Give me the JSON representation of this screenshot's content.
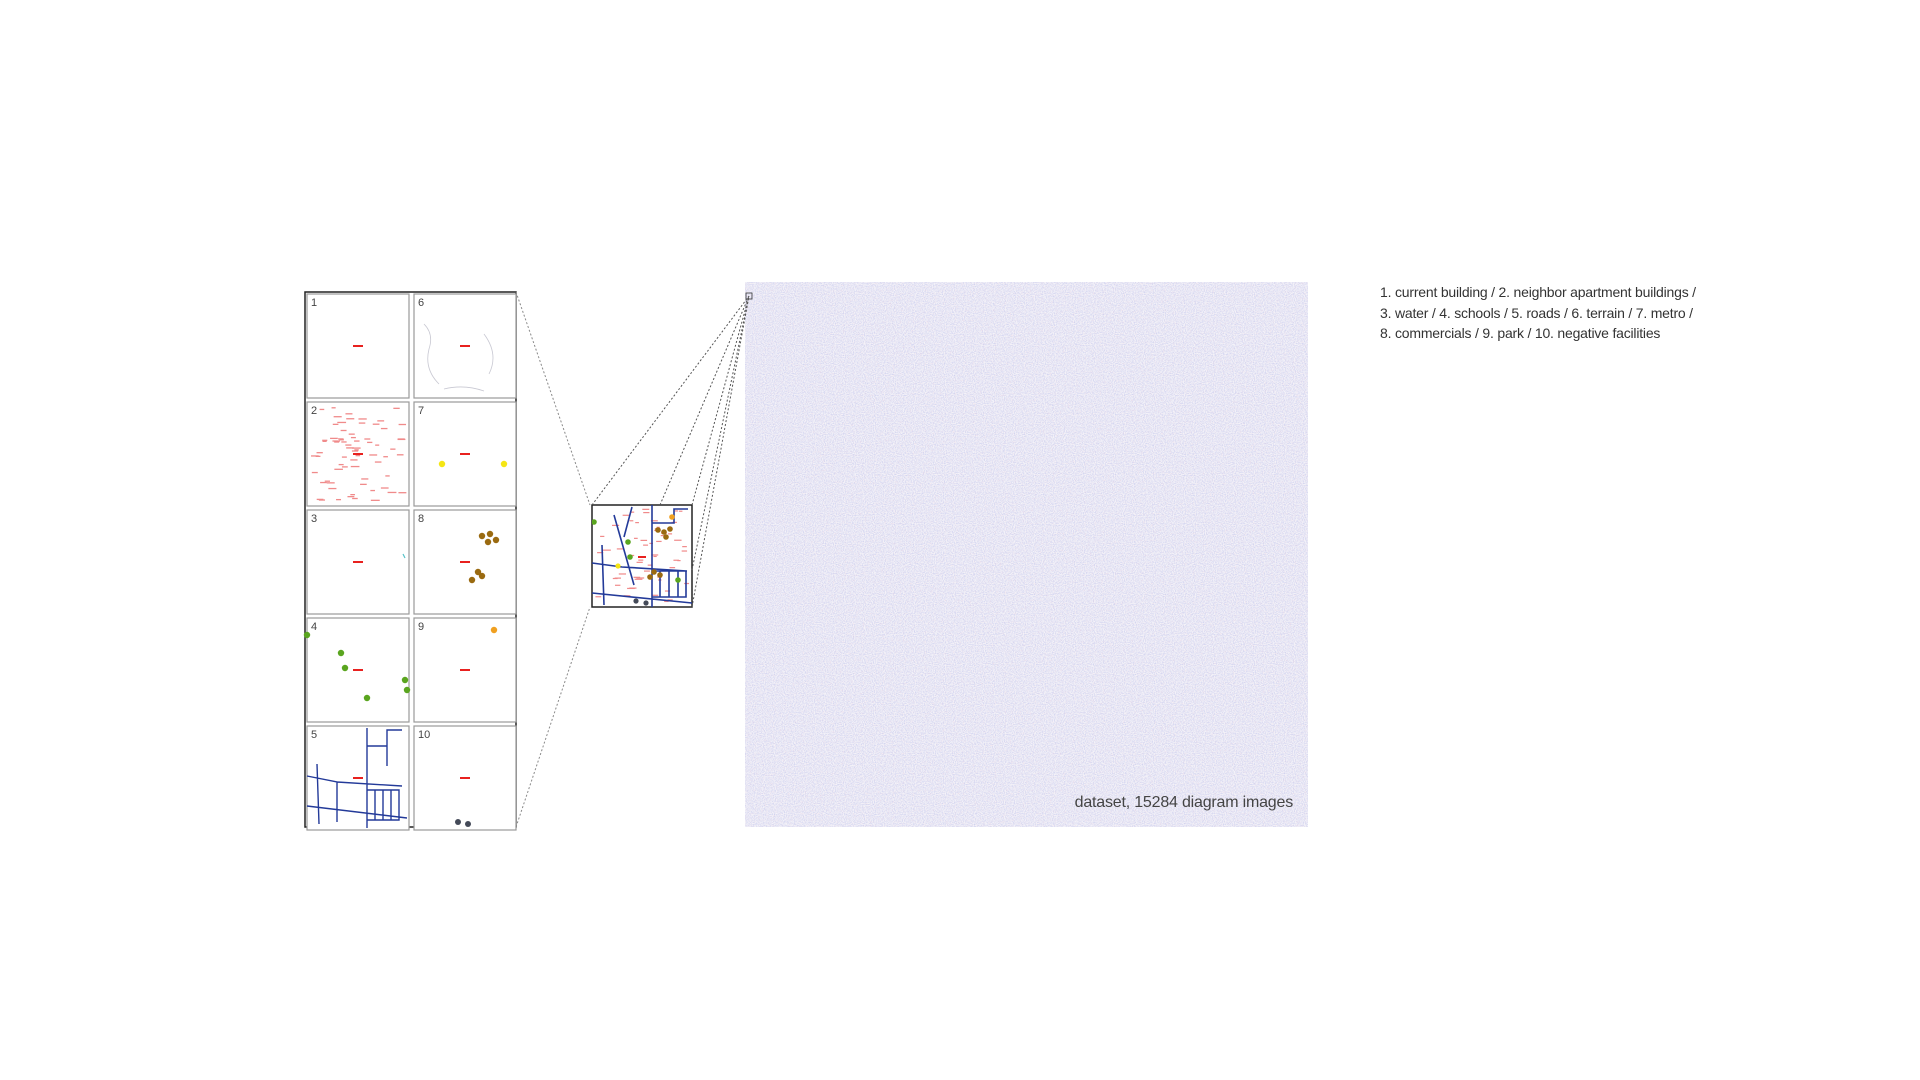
{
  "panels": [
    {
      "id": "p1",
      "number": "1",
      "layer": "current building"
    },
    {
      "id": "p6",
      "number": "6",
      "layer": "terrain"
    },
    {
      "id": "p2",
      "number": "2",
      "layer": "neighbor apartment buildings"
    },
    {
      "id": "p7",
      "number": "7",
      "layer": "metro"
    },
    {
      "id": "p3",
      "number": "3",
      "layer": "water"
    },
    {
      "id": "p8",
      "number": "8",
      "layer": "commercials"
    },
    {
      "id": "p4",
      "number": "4",
      "layer": "schools"
    },
    {
      "id": "p9",
      "number": "9",
      "layer": "park"
    },
    {
      "id": "p5",
      "number": "5",
      "layer": "roads"
    },
    {
      "id": "p10",
      "number": "10",
      "layer": "negative facilities"
    }
  ],
  "legend": {
    "line1": "1. current building / 2. neighbor apartment buildings /",
    "line2": "3. water / 4. schools / 5. roads / 6. terrain / 7. metro /",
    "line3": "8. commercials / 9. park / 10. negative facilities"
  },
  "dataset": {
    "caption": "dataset, 15284 diagram images"
  },
  "colors": {
    "current_building": "#e8211f",
    "neighbor_buildings": "#f08a8a",
    "water": "#56c2c8",
    "schools": "#5aa51f",
    "roads": "#233a99",
    "terrain": "#c8c8d2",
    "metro": "#f5e614",
    "commercials": "#9a6a10",
    "park": "#f0a020",
    "negative_facilities": "#444a58",
    "panel_border": "#9a9a9a",
    "frame": "#222222",
    "dataset_tint": "#8e92d6"
  }
}
